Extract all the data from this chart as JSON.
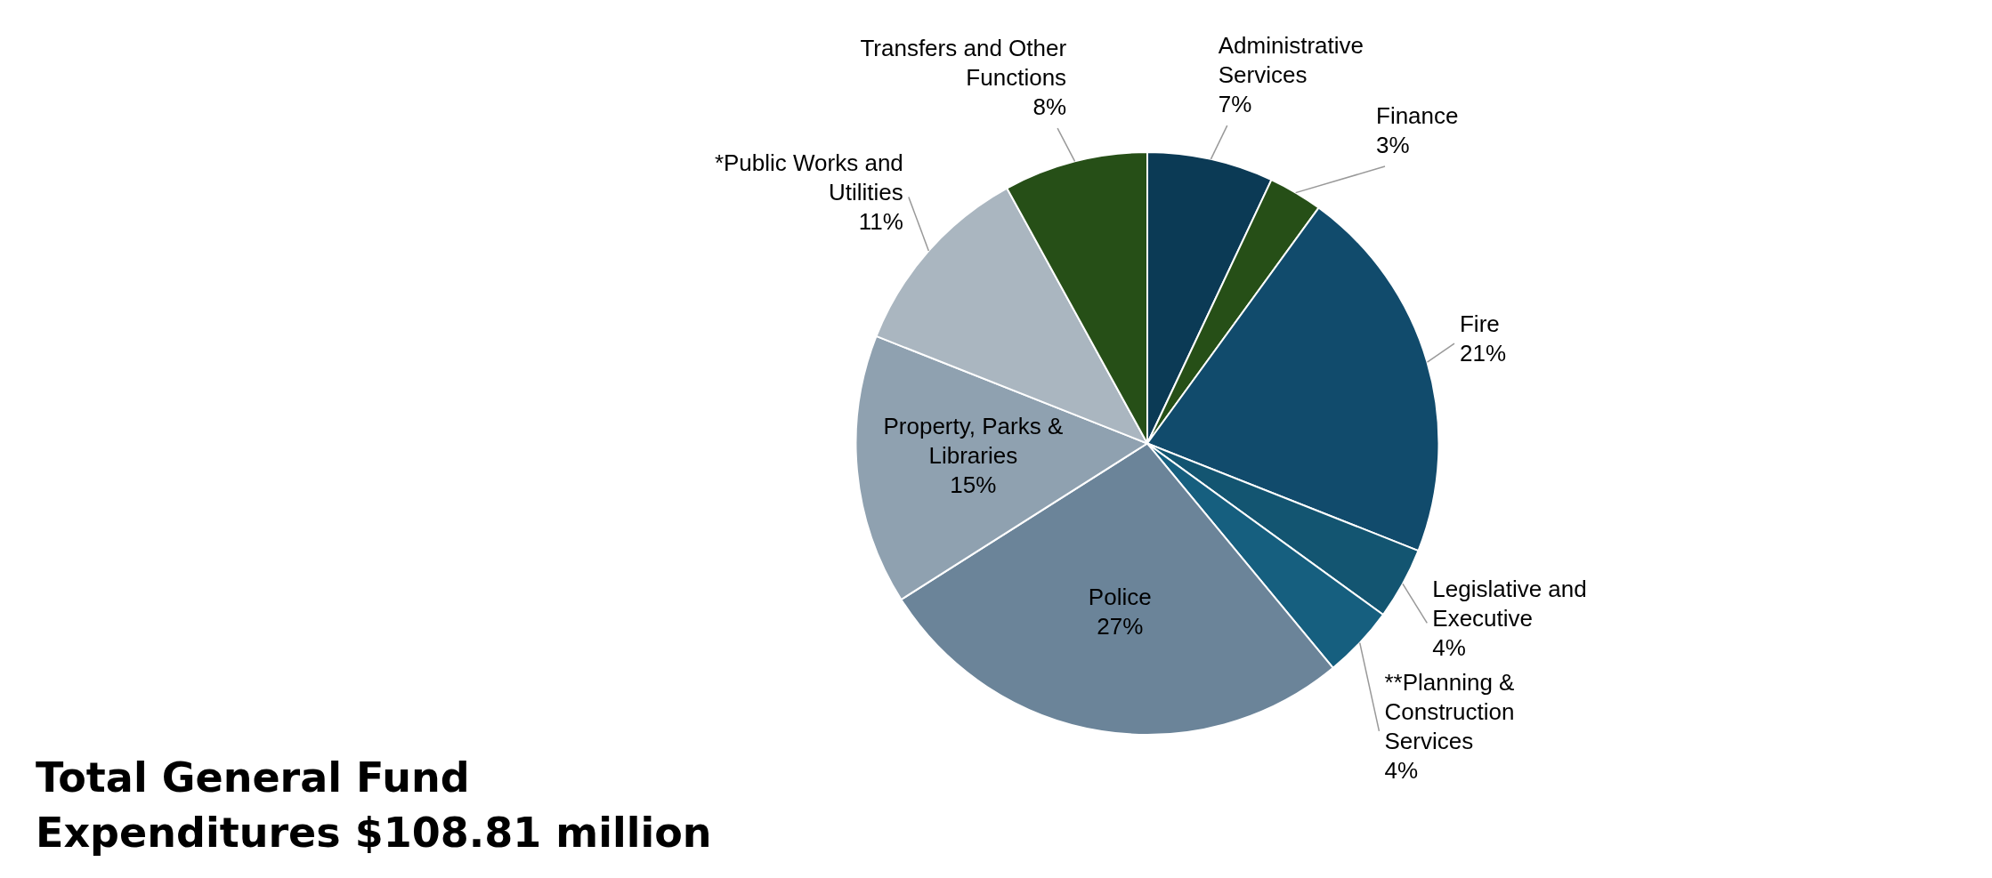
{
  "chart_data": {
    "type": "pie",
    "title": "Total General Fund Expenditures $108.81 million",
    "categories": [
      "Administrative Services",
      "Finance",
      "Fire",
      "Legislative and Executive",
      "**Planning & Construction Services",
      "Police",
      "Property, Parks & Libraries",
      "*Public Works and Utilities",
      "Transfers and Other Functions"
    ],
    "values": [
      7,
      3,
      21,
      4,
      4,
      27,
      15,
      11,
      8
    ],
    "value_labels": [
      "7%",
      "3%",
      "21%",
      "4%",
      "4%",
      "27%",
      "15%",
      "11%",
      "8%"
    ],
    "colors": [
      "#0b3a55",
      "#264f17",
      "#114b6c",
      "#135571",
      "#165f7f",
      "#6b8499",
      "#8fa1b0",
      "#aab6c0",
      "#264f17"
    ],
    "legend": false
  }
}
